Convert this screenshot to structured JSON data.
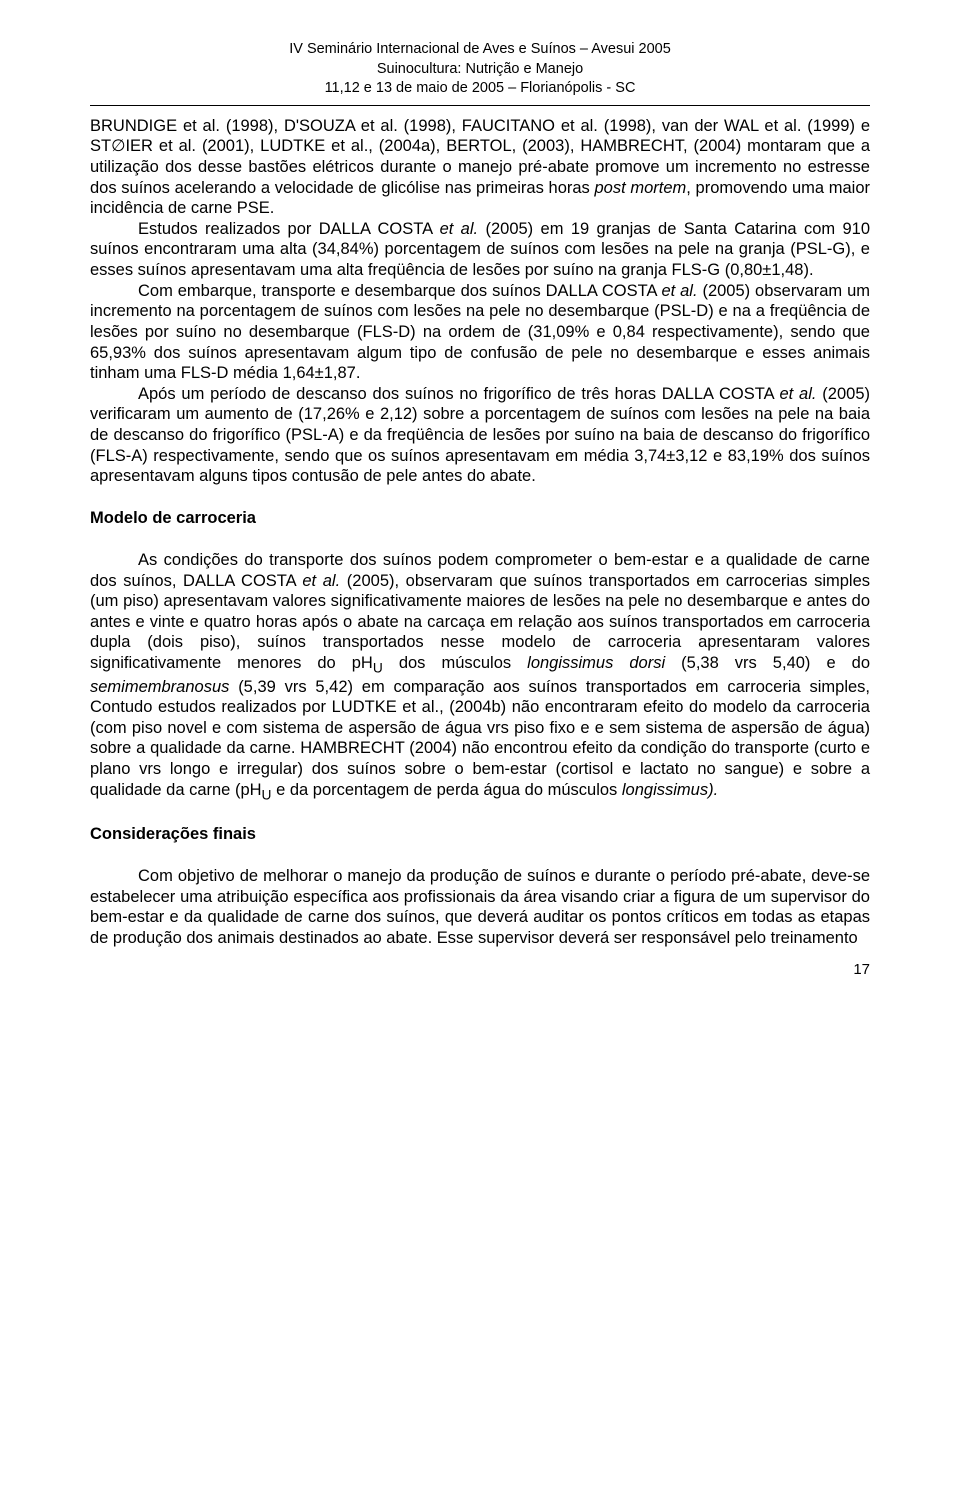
{
  "header": {
    "line1": "IV Seminário Internacional de Aves e Suínos – Avesui 2005",
    "line2": "Suinocultura: Nutrição e Manejo",
    "line3": "11,12 e 13 de maio de 2005 – Florianópolis - SC"
  },
  "paragraphs": {
    "p1a": "BRUNDIGE et al. (1998), D'SOUZA et al. (1998), FAUCITANO et al. (1998), van der WAL et al. (1999) e ST∅IER et al. (2001), LUDTKE et al., (2004a), BERTOL, (2003), HAMBRECHT, (2004) montaram que a utilização dos desse bastões elétricos durante o manejo pré-abate promove um incremento no estresse dos suínos acelerando a velocidade de glicólise nas primeiras horas ",
    "p1b": "post mortem",
    "p1c": ", promovendo uma maior incidência de carne PSE.",
    "p2a": "Estudos realizados por DALLA COSTA ",
    "p2b": "et al.",
    "p2c": " (2005) em 19 granjas de Santa Catarina com 910 suínos encontraram uma alta (34,84%) porcentagem de suínos com lesões na pele na granja (PSL-G), e esses suínos apresentavam uma alta freqüência de lesões por suíno na granja FLS-G (0,80±1,48).",
    "p3a": "Com embarque, transporte e desembarque dos suínos DALLA COSTA ",
    "p3b": "et al.",
    "p3c": " (2005) observaram um incremento na porcentagem de suínos com lesões na pele no desembarque (PSL-D) e na a freqüência de lesões por suíno no desembarque (FLS-D) na ordem de (31,09% e 0,84 respectivamente), sendo que 65,93% dos suínos apresentavam algum tipo de confusão de pele no desembarque e esses animais tinham uma FLS-D média 1,64±1,87.",
    "p4a": "Após um período de descanso dos suínos no frigorífico de três horas DALLA COSTA ",
    "p4b": "et al.",
    "p4c": " (2005) verificaram um aumento de (17,26% e 2,12) sobre a porcentagem de suínos com lesões na pele na baia de descanso do frigorífico (PSL-A) e da freqüência de lesões por suíno na baia de descanso do frigorífico (FLS-A) respectivamente, sendo que os suínos apresentavam em média 3,74±3,12 e 83,19% dos suínos apresentavam alguns tipos contusão de pele antes do abate."
  },
  "section1_title": "Modelo de carroceria",
  "paragraphs2": {
    "p5a": "As condições do transporte dos suínos podem comprometer o bem-estar e a qualidade de carne dos suínos, DALLA COSTA ",
    "p5b": "et al.",
    "p5c": " (2005), observaram que suínos transportados em carrocerias simples (um piso) apresentavam valores significativamente maiores de lesões na pele no desembarque e antes do antes e vinte e quatro horas após o abate na carcaça em relação aos suínos transportados em carroceria dupla (dois piso), suínos transportados nesse modelo de carroceria apresentaram valores significativamente menores do pH",
    "p5d": "U",
    "p5e": " dos músculos ",
    "p5f": "longissimus dorsi",
    "p5g": " (5,38 vrs 5,40) e do ",
    "p5h": "semimembranosus",
    "p5i": " (5,39 vrs 5,42) em comparação aos suínos transportados em carroceria simples, Contudo estudos realizados por LUDTKE et al., (2004b) não encontraram efeito do modelo da carroceria (com piso novel e com sistema de aspersão de água vrs piso fixo e e sem sistema de aspersão de água) sobre a qualidade da carne. HAMBRECHT (2004) não encontrou efeito da condição do transporte (curto e plano vrs longo e irregular) dos suínos sobre o bem-estar (cortisol e lactato no sangue) e sobre a qualidade da carne (pH",
    "p5j": "U",
    "p5k": " e da porcentagem de perda água do músculos ",
    "p5l": "longissimus).",
    "p5m": ""
  },
  "section2_title": "Considerações finais",
  "paragraphs3": {
    "p6": "Com objetivo de melhorar o manejo da produção de suínos e durante o período pré-abate, deve-se estabelecer uma atribuição específica aos profissionais da área visando criar a figura de um supervisor do bem-estar e da qualidade de carne dos suínos, que deverá auditar os pontos críticos em todas as etapas de produção dos animais destinados ao abate. Esse supervisor deverá ser responsável pelo treinamento"
  },
  "page_number": "17"
}
